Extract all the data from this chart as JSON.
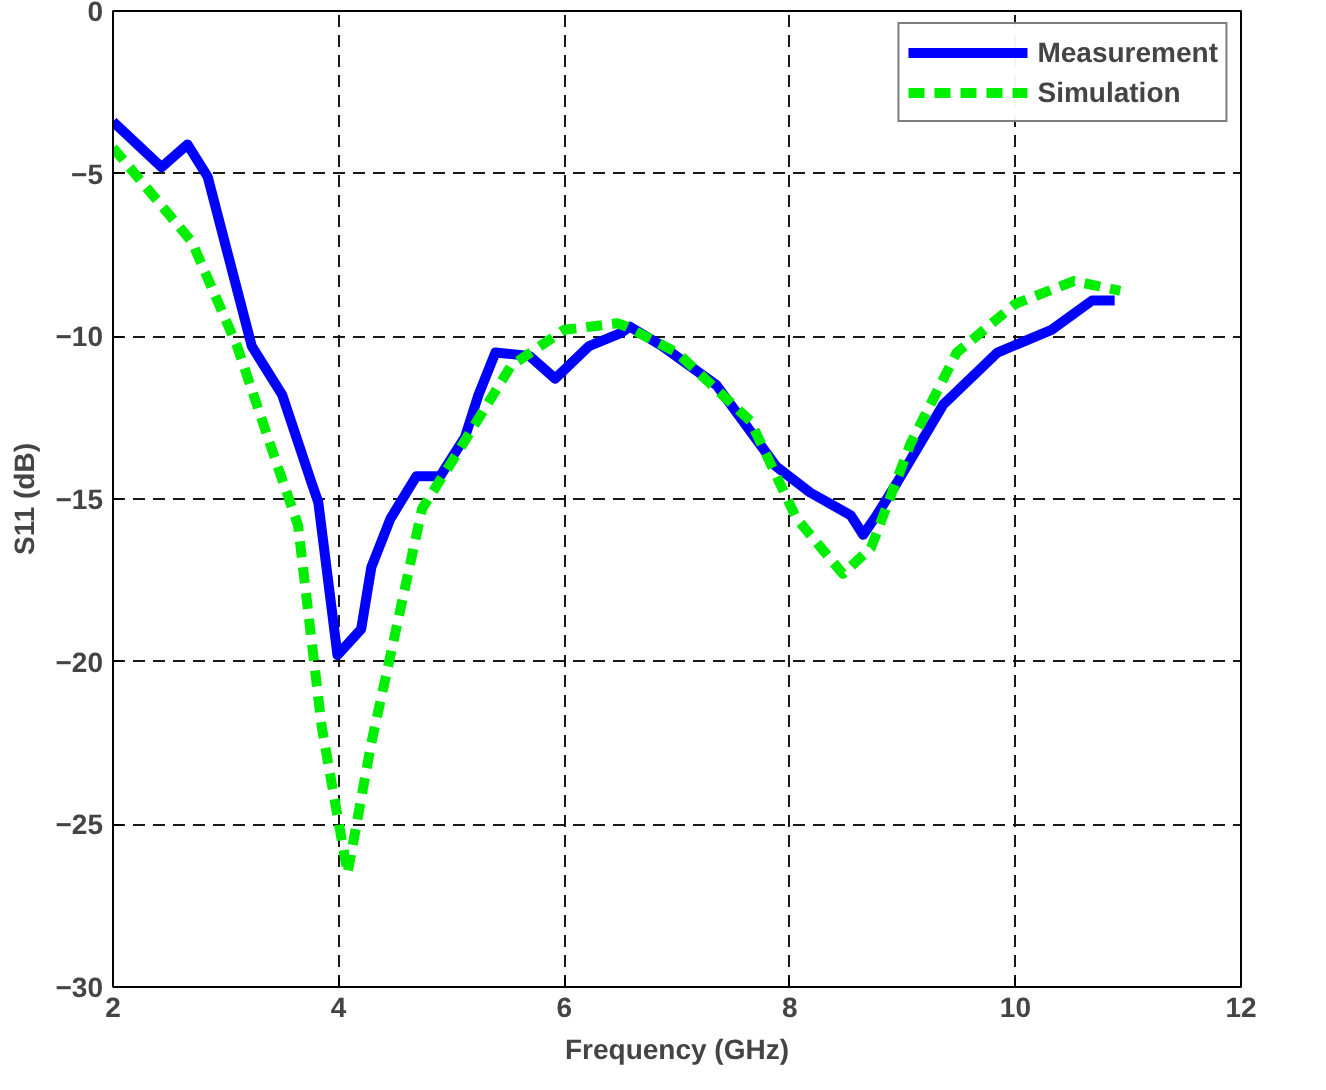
{
  "chart_data": {
    "type": "line",
    "xlabel": "Frequency (GHz)",
    "ylabel": "S11 (dB)",
    "xlim": [
      2,
      12
    ],
    "ylim": [
      -30,
      0
    ],
    "xticks": [
      2,
      4,
      6,
      8,
      10,
      12
    ],
    "yticks": [
      -30,
      -25,
      -20,
      -15,
      -10,
      -5,
      0
    ],
    "grid": true,
    "legend": "top right",
    "series": [
      {
        "name": "Measurement",
        "color": "#0000ff",
        "line_style": "solid",
        "x": [
          2.0,
          2.43,
          2.66,
          2.84,
          3.23,
          3.5,
          3.76,
          3.82,
          3.99,
          4.2,
          4.29,
          4.46,
          4.69,
          4.9,
          5.12,
          5.24,
          5.39,
          5.69,
          5.92,
          6.22,
          6.5,
          6.58,
          6.87,
          7.35,
          7.88,
          8.18,
          8.54,
          8.65,
          8.77,
          8.95,
          9.36,
          9.84,
          10.32,
          10.68,
          10.88
        ],
        "values": [
          -3.4,
          -4.8,
          -4.1,
          -5.1,
          -10.3,
          -11.8,
          -14.5,
          -15.1,
          -19.8,
          -19.0,
          -17.1,
          -15.6,
          -14.3,
          -14.3,
          -13.1,
          -11.8,
          -10.5,
          -10.6,
          -11.3,
          -10.3,
          -9.9,
          -9.7,
          -10.3,
          -11.5,
          -14.0,
          -14.8,
          -15.5,
          -16.1,
          -15.5,
          -14.5,
          -12.1,
          -10.5,
          -9.8,
          -8.9,
          -8.9
        ]
      },
      {
        "name": "Simulation",
        "color": "#00ee00",
        "line_style": "dashed",
        "x": [
          2.0,
          2.7,
          3.1,
          3.46,
          3.64,
          3.85,
          4.08,
          4.29,
          4.46,
          4.74,
          5.05,
          5.53,
          6.0,
          6.47,
          6.55,
          7.0,
          7.65,
          8.06,
          8.47,
          8.72,
          9.07,
          9.48,
          10.0,
          10.52,
          10.93
        ],
        "values": [
          -4.2,
          -7.1,
          -10.3,
          -14.0,
          -15.8,
          -22.0,
          -26.5,
          -22.5,
          -19.8,
          -15.3,
          -13.6,
          -10.9,
          -9.8,
          -9.6,
          -9.7,
          -10.5,
          -12.6,
          -15.6,
          -17.3,
          -16.5,
          -13.3,
          -10.5,
          -9.0,
          -8.3,
          -8.6
        ]
      }
    ]
  }
}
